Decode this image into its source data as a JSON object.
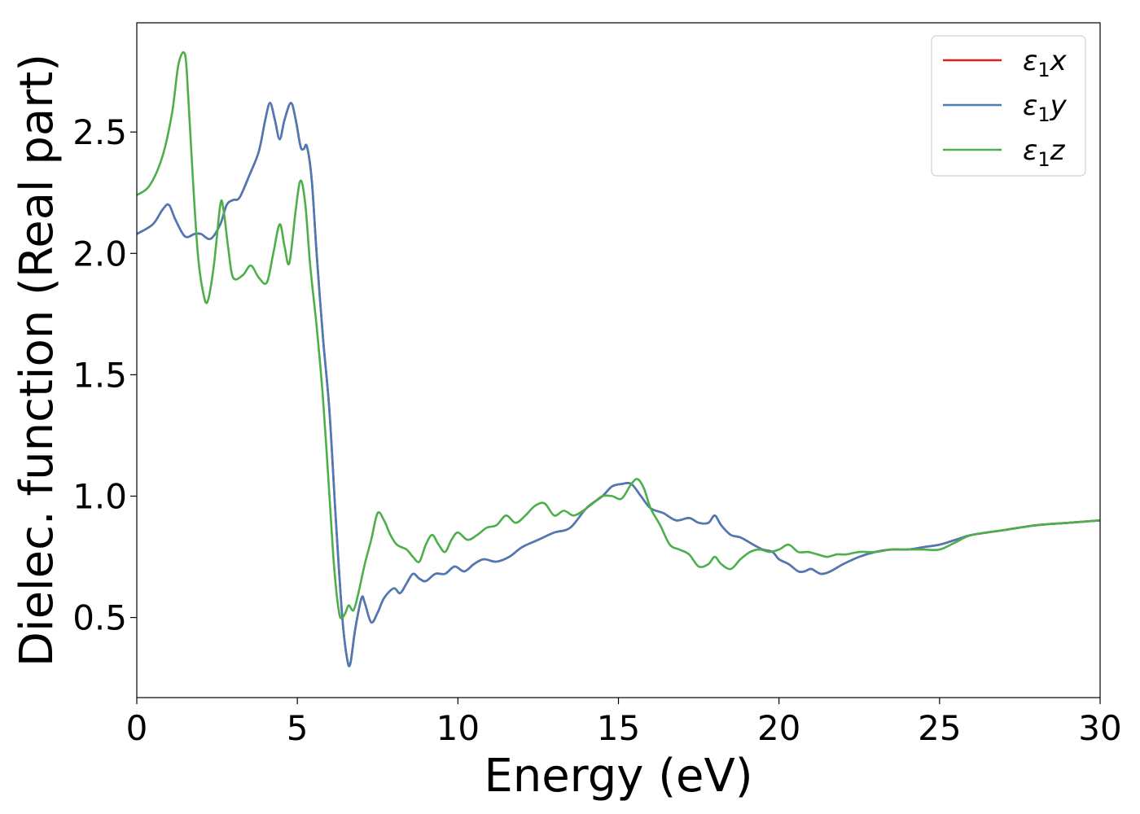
{
  "chart_data": {
    "type": "line",
    "title": "",
    "xlabel": "Energy (eV)",
    "ylabel": "Dielec. function (Real part)",
    "xlim": [
      0,
      30
    ],
    "ylim": [
      0.17,
      2.95
    ],
    "xticks": [
      0,
      5,
      10,
      15,
      20,
      25,
      30
    ],
    "xtick_labels": [
      "0",
      "5",
      "10",
      "15",
      "20",
      "25",
      "30"
    ],
    "yticks": [
      0.5,
      1.0,
      1.5,
      2.0,
      2.5
    ],
    "ytick_labels": [
      "0.5",
      "1.0",
      "1.5",
      "2.0",
      "2.5"
    ],
    "grid": false,
    "legend_position": "top-right",
    "series": [
      {
        "name": "ε₁x",
        "legend": {
          "base": "ε",
          "sub": "1",
          "suffix": "x"
        },
        "color": "#e41a1c",
        "x": [
          0,
          0.5,
          0.8,
          1.0,
          1.2,
          1.5,
          1.8,
          2.0,
          2.3,
          2.6,
          2.8,
          3.0,
          3.2,
          3.5,
          3.8,
          4.0,
          4.15,
          4.3,
          4.45,
          4.6,
          4.8,
          4.95,
          5.1,
          5.2,
          5.3,
          5.45,
          5.6,
          5.8,
          6.0,
          6.2,
          6.4,
          6.55,
          6.65,
          6.8,
          7.0,
          7.1,
          7.3,
          7.5,
          7.7,
          8.0,
          8.2,
          8.4,
          8.6,
          8.8,
          9.0,
          9.3,
          9.6,
          9.9,
          10.2,
          10.5,
          10.8,
          11.2,
          11.6,
          12.0,
          12.5,
          13.0,
          13.5,
          14.0,
          14.5,
          14.8,
          15.1,
          15.4,
          15.7,
          16.0,
          16.4,
          16.8,
          17.2,
          17.5,
          17.8,
          18.0,
          18.2,
          18.5,
          18.8,
          19.2,
          19.5,
          19.8,
          20.0,
          20.3,
          20.6,
          20.8,
          21.0,
          21.3,
          21.6,
          22.0,
          22.5,
          23.0,
          23.5,
          24.0,
          24.5,
          25.0,
          25.5,
          26.0,
          27.0,
          28.0,
          29.0,
          30.0
        ],
        "values": [
          2.08,
          2.12,
          2.18,
          2.2,
          2.14,
          2.07,
          2.08,
          2.08,
          2.06,
          2.12,
          2.2,
          2.22,
          2.23,
          2.32,
          2.42,
          2.55,
          2.62,
          2.55,
          2.47,
          2.55,
          2.62,
          2.55,
          2.44,
          2.43,
          2.44,
          2.3,
          2.0,
          1.65,
          1.35,
          0.9,
          0.5,
          0.33,
          0.31,
          0.45,
          0.58,
          0.56,
          0.48,
          0.52,
          0.58,
          0.62,
          0.6,
          0.64,
          0.68,
          0.66,
          0.65,
          0.68,
          0.68,
          0.71,
          0.69,
          0.72,
          0.74,
          0.73,
          0.75,
          0.79,
          0.82,
          0.85,
          0.87,
          0.95,
          1.0,
          1.04,
          1.05,
          1.05,
          1.0,
          0.95,
          0.93,
          0.9,
          0.91,
          0.89,
          0.89,
          0.92,
          0.88,
          0.84,
          0.83,
          0.8,
          0.78,
          0.77,
          0.74,
          0.72,
          0.69,
          0.69,
          0.7,
          0.68,
          0.69,
          0.72,
          0.75,
          0.77,
          0.78,
          0.78,
          0.79,
          0.8,
          0.82,
          0.84,
          0.86,
          0.88,
          0.89,
          0.9
        ]
      },
      {
        "name": "ε₁y",
        "legend": {
          "base": "ε",
          "sub": "1",
          "suffix": "y"
        },
        "color": "#4a7bb7",
        "x": [
          0,
          0.5,
          0.8,
          1.0,
          1.2,
          1.5,
          1.8,
          2.0,
          2.3,
          2.6,
          2.8,
          3.0,
          3.2,
          3.5,
          3.8,
          4.0,
          4.15,
          4.3,
          4.45,
          4.6,
          4.8,
          4.95,
          5.1,
          5.2,
          5.3,
          5.45,
          5.6,
          5.8,
          6.0,
          6.2,
          6.4,
          6.55,
          6.65,
          6.8,
          7.0,
          7.1,
          7.3,
          7.5,
          7.7,
          8.0,
          8.2,
          8.4,
          8.6,
          8.8,
          9.0,
          9.3,
          9.6,
          9.9,
          10.2,
          10.5,
          10.8,
          11.2,
          11.6,
          12.0,
          12.5,
          13.0,
          13.5,
          14.0,
          14.5,
          14.8,
          15.1,
          15.4,
          15.7,
          16.0,
          16.4,
          16.8,
          17.2,
          17.5,
          17.8,
          18.0,
          18.2,
          18.5,
          18.8,
          19.2,
          19.5,
          19.8,
          20.0,
          20.3,
          20.6,
          20.8,
          21.0,
          21.3,
          21.6,
          22.0,
          22.5,
          23.0,
          23.5,
          24.0,
          24.5,
          25.0,
          25.5,
          26.0,
          27.0,
          28.0,
          29.0,
          30.0
        ],
        "values": [
          2.08,
          2.12,
          2.18,
          2.2,
          2.14,
          2.07,
          2.08,
          2.08,
          2.06,
          2.12,
          2.2,
          2.22,
          2.23,
          2.32,
          2.42,
          2.55,
          2.62,
          2.55,
          2.47,
          2.55,
          2.62,
          2.55,
          2.44,
          2.43,
          2.44,
          2.3,
          2.0,
          1.65,
          1.35,
          0.9,
          0.5,
          0.33,
          0.31,
          0.45,
          0.58,
          0.56,
          0.48,
          0.52,
          0.58,
          0.62,
          0.6,
          0.64,
          0.68,
          0.66,
          0.65,
          0.68,
          0.68,
          0.71,
          0.69,
          0.72,
          0.74,
          0.73,
          0.75,
          0.79,
          0.82,
          0.85,
          0.87,
          0.95,
          1.0,
          1.04,
          1.05,
          1.05,
          1.0,
          0.95,
          0.93,
          0.9,
          0.91,
          0.89,
          0.89,
          0.92,
          0.88,
          0.84,
          0.83,
          0.8,
          0.78,
          0.77,
          0.74,
          0.72,
          0.69,
          0.69,
          0.7,
          0.68,
          0.69,
          0.72,
          0.75,
          0.77,
          0.78,
          0.78,
          0.79,
          0.8,
          0.82,
          0.84,
          0.86,
          0.88,
          0.89,
          0.9
        ]
      },
      {
        "name": "ε₁z",
        "legend": {
          "base": "ε",
          "sub": "1",
          "suffix": "z"
        },
        "color": "#4daf4a",
        "x": [
          0,
          0.4,
          0.8,
          1.1,
          1.3,
          1.5,
          1.6,
          1.75,
          1.9,
          2.05,
          2.2,
          2.4,
          2.6,
          2.7,
          2.85,
          3.0,
          3.3,
          3.55,
          3.8,
          4.05,
          4.25,
          4.45,
          4.6,
          4.75,
          4.95,
          5.1,
          5.25,
          5.4,
          5.6,
          5.8,
          6.0,
          6.15,
          6.3,
          6.4,
          6.5,
          6.6,
          6.75,
          6.9,
          7.1,
          7.3,
          7.5,
          7.7,
          7.9,
          8.1,
          8.4,
          8.6,
          8.8,
          9.0,
          9.2,
          9.4,
          9.6,
          9.8,
          10.0,
          10.3,
          10.6,
          10.9,
          11.2,
          11.5,
          11.8,
          12.1,
          12.4,
          12.7,
          13.0,
          13.3,
          13.6,
          13.9,
          14.2,
          14.5,
          14.8,
          15.1,
          15.4,
          15.6,
          15.8,
          16.0,
          16.3,
          16.6,
          16.9,
          17.2,
          17.5,
          17.8,
          18.0,
          18.2,
          18.5,
          18.8,
          19.1,
          19.4,
          19.7,
          20.0,
          20.3,
          20.6,
          20.9,
          21.2,
          21.5,
          21.8,
          22.1,
          22.5,
          23.0,
          23.5,
          24.0,
          24.5,
          25.0,
          25.5,
          26.0,
          27.0,
          28.0,
          29.0,
          30.0
        ],
        "values": [
          2.24,
          2.28,
          2.4,
          2.58,
          2.78,
          2.82,
          2.65,
          2.3,
          2.0,
          1.85,
          1.8,
          1.95,
          2.2,
          2.18,
          2.02,
          1.9,
          1.91,
          1.95,
          1.9,
          1.88,
          2.0,
          2.12,
          2.03,
          1.96,
          2.18,
          2.3,
          2.2,
          1.95,
          1.7,
          1.4,
          1.0,
          0.7,
          0.52,
          0.5,
          0.52,
          0.55,
          0.53,
          0.6,
          0.72,
          0.82,
          0.93,
          0.9,
          0.84,
          0.8,
          0.78,
          0.75,
          0.73,
          0.8,
          0.84,
          0.8,
          0.77,
          0.82,
          0.85,
          0.82,
          0.84,
          0.87,
          0.88,
          0.92,
          0.89,
          0.92,
          0.96,
          0.97,
          0.92,
          0.94,
          0.92,
          0.94,
          0.97,
          1.0,
          1.0,
          0.99,
          1.05,
          1.07,
          1.03,
          0.95,
          0.88,
          0.8,
          0.78,
          0.76,
          0.71,
          0.72,
          0.75,
          0.72,
          0.7,
          0.74,
          0.77,
          0.78,
          0.77,
          0.78,
          0.8,
          0.77,
          0.77,
          0.76,
          0.75,
          0.76,
          0.76,
          0.77,
          0.77,
          0.78,
          0.78,
          0.78,
          0.78,
          0.81,
          0.84,
          0.86,
          0.88,
          0.89,
          0.9
        ]
      }
    ]
  }
}
